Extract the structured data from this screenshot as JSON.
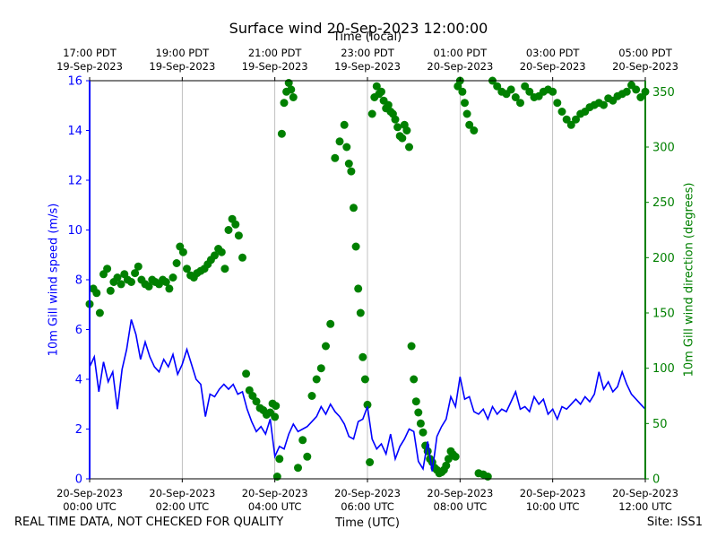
{
  "title": "Surface wind 20-Sep-2023 12:00:00",
  "footer_left": "REAL TIME DATA, NOT CHECKED FOR QUALITY",
  "footer_right": "Site: ISS1",
  "chart_data": {
    "type": "line+scatter",
    "xlabel": "Time (UTC)",
    "top_xlabel": "Time (local)",
    "ylabel_left": "10m Gill wind speed (m/s)",
    "ylabel_right": "10m Gill wind direction (degrees)",
    "x_range_hours_utc": [
      0,
      12
    ],
    "ylim_left": [
      0,
      16
    ],
    "ylim_right": [
      0,
      360
    ],
    "left_ticks": [
      0,
      2,
      4,
      6,
      8,
      10,
      12,
      14,
      16
    ],
    "right_ticks": [
      0,
      50,
      100,
      150,
      200,
      250,
      300,
      350
    ],
    "bottom_ticks": [
      {
        "x": 0,
        "line1": "20-Sep-2023",
        "line2": "00:00 UTC"
      },
      {
        "x": 2,
        "line1": "20-Sep-2023",
        "line2": "02:00 UTC"
      },
      {
        "x": 4,
        "line1": "20-Sep-2023",
        "line2": "04:00 UTC"
      },
      {
        "x": 6,
        "line1": "20-Sep-2023",
        "line2": "06:00 UTC"
      },
      {
        "x": 8,
        "line1": "20-Sep-2023",
        "line2": "08:00 UTC"
      },
      {
        "x": 10,
        "line1": "20-Sep-2023",
        "line2": "10:00 UTC"
      },
      {
        "x": 12,
        "line1": "20-Sep-2023",
        "line2": "12:00 UTC"
      }
    ],
    "top_ticks": [
      {
        "x": 0,
        "line1": "17:00 PDT",
        "line2": "19-Sep-2023"
      },
      {
        "x": 2,
        "line1": "19:00 PDT",
        "line2": "19-Sep-2023"
      },
      {
        "x": 4,
        "line1": "21:00 PDT",
        "line2": "19-Sep-2023"
      },
      {
        "x": 6,
        "line1": "23:00 PDT",
        "line2": "19-Sep-2023"
      },
      {
        "x": 8,
        "line1": "01:00 PDT",
        "line2": "20-Sep-2023"
      },
      {
        "x": 10,
        "line1": "03:00 PDT",
        "line2": "20-Sep-2023"
      },
      {
        "x": 12,
        "line1": "05:00 PDT",
        "line2": "20-Sep-2023"
      }
    ],
    "grid": "vertical",
    "series": [
      {
        "name": "10m Gill wind speed (m/s)",
        "axis": "left",
        "style": "line",
        "color": "#0000ff",
        "x": [
          0.0,
          0.1,
          0.2,
          0.3,
          0.4,
          0.5,
          0.6,
          0.7,
          0.8,
          0.9,
          1.0,
          1.1,
          1.2,
          1.3,
          1.4,
          1.5,
          1.6,
          1.7,
          1.8,
          1.9,
          2.0,
          2.1,
          2.2,
          2.3,
          2.4,
          2.5,
          2.6,
          2.7,
          2.8,
          2.9,
          3.0,
          3.1,
          3.2,
          3.3,
          3.4,
          3.5,
          3.6,
          3.7,
          3.8,
          3.9,
          4.0,
          4.1,
          4.2,
          4.3,
          4.4,
          4.5,
          4.6,
          4.7,
          4.8,
          4.9,
          5.0,
          5.1,
          5.2,
          5.3,
          5.4,
          5.5,
          5.6,
          5.7,
          5.8,
          5.9,
          6.0,
          6.1,
          6.2,
          6.3,
          6.4,
          6.5,
          6.6,
          6.7,
          6.8,
          6.9,
          7.0,
          7.1,
          7.2,
          7.3,
          7.4,
          7.5,
          7.6,
          7.7,
          7.8,
          7.9,
          8.0,
          8.1,
          8.2,
          8.3,
          8.4,
          8.5,
          8.6,
          8.7,
          8.8,
          8.9,
          9.0,
          9.1,
          9.2,
          9.3,
          9.4,
          9.5,
          9.6,
          9.7,
          9.8,
          9.9,
          10.0,
          10.1,
          10.2,
          10.3,
          10.4,
          10.5,
          10.6,
          10.7,
          10.8,
          10.9,
          11.0,
          11.1,
          11.2,
          11.3,
          11.4,
          11.5,
          11.6,
          11.7,
          11.8,
          11.9,
          12.0
        ],
        "values": [
          4.5,
          4.9,
          3.5,
          4.7,
          3.9,
          4.3,
          2.8,
          4.4,
          5.2,
          6.4,
          5.8,
          4.8,
          5.5,
          4.9,
          4.5,
          4.3,
          4.8,
          4.5,
          5.0,
          4.2,
          4.6,
          5.2,
          4.6,
          4.0,
          3.8,
          2.5,
          3.4,
          3.3,
          3.6,
          3.8,
          3.6,
          3.8,
          3.4,
          3.5,
          2.8,
          2.3,
          1.9,
          2.1,
          1.8,
          2.4,
          0.9,
          1.3,
          1.2,
          1.8,
          2.2,
          1.9,
          2.0,
          2.1,
          2.3,
          2.5,
          2.9,
          2.6,
          3.0,
          2.7,
          2.5,
          2.2,
          1.7,
          1.6,
          2.3,
          2.4,
          2.9,
          1.6,
          1.2,
          1.4,
          1.0,
          1.8,
          0.8,
          1.3,
          1.6,
          2.0,
          1.9,
          0.7,
          0.4,
          1.5,
          0.3,
          1.7,
          2.1,
          2.4,
          3.3,
          2.9,
          4.1,
          3.2,
          3.3,
          2.7,
          2.6,
          2.8,
          2.4,
          2.9,
          2.6,
          2.8,
          2.7,
          3.1,
          3.5,
          2.8,
          2.9,
          2.7,
          3.3,
          3.0,
          3.2,
          2.6,
          2.8,
          2.4,
          2.9,
          2.8,
          3.0,
          3.2,
          3.0,
          3.3,
          3.1,
          3.4,
          4.3,
          3.6,
          3.9,
          3.5,
          3.7,
          4.3,
          3.8,
          3.4,
          3.2,
          3.0,
          2.8
        ]
      },
      {
        "name": "10m Gill wind direction (degrees)",
        "axis": "right",
        "style": "markers",
        "color": "#008000",
        "x": [
          0.0,
          0.08,
          0.15,
          0.22,
          0.3,
          0.38,
          0.45,
          0.52,
          0.6,
          0.68,
          0.75,
          0.82,
          0.9,
          0.98,
          1.05,
          1.12,
          1.2,
          1.28,
          1.35,
          1.42,
          1.5,
          1.58,
          1.65,
          1.72,
          1.8,
          1.88,
          1.95,
          2.02,
          2.1,
          2.18,
          2.25,
          2.32,
          2.4,
          2.48,
          2.55,
          2.62,
          2.7,
          2.78,
          2.85,
          2.92,
          3.0,
          3.08,
          3.15,
          3.22,
          3.3,
          3.38,
          3.45,
          3.52,
          3.6,
          3.68,
          3.75,
          3.82,
          3.9,
          3.95,
          4.0,
          4.02,
          4.05,
          4.1,
          4.15,
          4.2,
          4.25,
          4.3,
          4.35,
          4.4,
          4.5,
          4.6,
          4.7,
          4.8,
          4.9,
          5.0,
          5.1,
          5.2,
          5.3,
          5.4,
          5.5,
          5.55,
          5.6,
          5.65,
          5.7,
          5.75,
          5.8,
          5.85,
          5.9,
          5.95,
          6.0,
          6.05,
          6.1,
          6.15,
          6.2,
          6.25,
          6.3,
          6.35,
          6.4,
          6.45,
          6.5,
          6.55,
          6.6,
          6.65,
          6.7,
          6.75,
          6.8,
          6.85,
          6.9,
          6.95,
          7.0,
          7.05,
          7.1,
          7.15,
          7.2,
          7.25,
          7.3,
          7.35,
          7.4,
          7.45,
          7.5,
          7.55,
          7.6,
          7.65,
          7.7,
          7.75,
          7.8,
          7.85,
          7.9,
          7.95,
          8.0,
          8.05,
          8.1,
          8.15,
          8.2,
          8.3,
          8.4,
          8.5,
          8.6,
          8.7,
          8.8,
          8.9,
          9.0,
          9.1,
          9.2,
          9.3,
          9.4,
          9.5,
          9.6,
          9.7,
          9.8,
          9.9,
          10.0,
          10.1,
          10.2,
          10.3,
          10.4,
          10.5,
          10.6,
          10.7,
          10.8,
          10.9,
          11.0,
          11.1,
          11.2,
          11.3,
          11.4,
          11.5,
          11.6,
          11.7,
          11.8,
          11.9,
          12.0
        ],
        "values": [
          158,
          172,
          168,
          150,
          185,
          190,
          170,
          178,
          182,
          176,
          185,
          180,
          178,
          186,
          192,
          180,
          176,
          174,
          180,
          178,
          176,
          180,
          178,
          172,
          182,
          195,
          210,
          205,
          190,
          184,
          182,
          186,
          188,
          190,
          194,
          198,
          202,
          208,
          205,
          190,
          225,
          235,
          230,
          220,
          200,
          95,
          80,
          75,
          70,
          64,
          62,
          58,
          60,
          68,
          56,
          66,
          2,
          18,
          312,
          340,
          350,
          358,
          352,
          345,
          10,
          35,
          20,
          75,
          90,
          100,
          120,
          140,
          290,
          305,
          320,
          300,
          285,
          278,
          245,
          210,
          172,
          150,
          110,
          90,
          67,
          15,
          330,
          345,
          355,
          348,
          350,
          342,
          335,
          338,
          332,
          330,
          325,
          318,
          310,
          308,
          320,
          315,
          300,
          120,
          90,
          70,
          60,
          50,
          42,
          30,
          25,
          18,
          15,
          10,
          8,
          5,
          6,
          8,
          12,
          18,
          25,
          22,
          20,
          355,
          360,
          350,
          340,
          330,
          320,
          315,
          5,
          4,
          2,
          360,
          355,
          350,
          348,
          352,
          345,
          340,
          355,
          350,
          345,
          346,
          350,
          352,
          350,
          340,
          332,
          325,
          320,
          325,
          330,
          332,
          336,
          338,
          340,
          338,
          344,
          342,
          346,
          348,
          350,
          356,
          352,
          345,
          350
        ]
      }
    ]
  }
}
